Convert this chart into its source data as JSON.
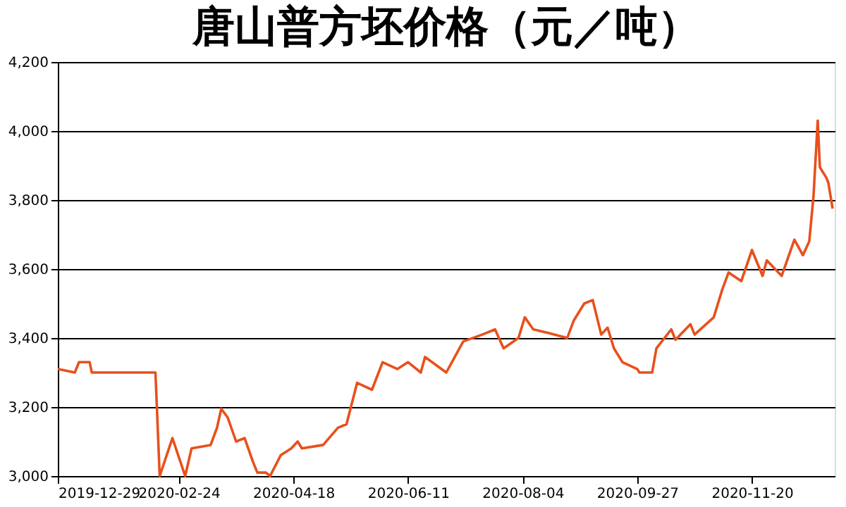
{
  "chart_data": {
    "type": "line",
    "title": "唐山普方坯价格（元／吨）",
    "x": [
      "2019-12-29",
      "2020-01-06",
      "2020-01-08",
      "2020-01-13",
      "2020-01-14",
      "2020-02-13",
      "2020-02-15",
      "2020-02-21",
      "2020-02-27",
      "2020-03-01",
      "2020-03-10",
      "2020-03-13",
      "2020-03-15",
      "2020-03-18",
      "2020-03-22",
      "2020-03-26",
      "2020-03-30",
      "2020-04-01",
      "2020-04-05",
      "2020-04-07",
      "2020-04-12",
      "2020-04-17",
      "2020-04-20",
      "2020-04-22",
      "2020-05-02",
      "2020-05-09",
      "2020-05-13",
      "2020-05-18",
      "2020-05-25",
      "2020-05-30",
      "2020-06-06",
      "2020-06-11",
      "2020-06-17",
      "2020-06-19",
      "2020-06-29",
      "2020-07-07",
      "2020-07-16",
      "2020-07-22",
      "2020-07-26",
      "2020-08-02",
      "2020-08-05",
      "2020-08-09",
      "2020-08-16",
      "2020-08-25",
      "2020-08-28",
      "2020-09-02",
      "2020-09-06",
      "2020-09-10",
      "2020-09-13",
      "2020-09-16",
      "2020-09-20",
      "2020-09-27",
      "2020-09-28",
      "2020-10-04",
      "2020-10-06",
      "2020-10-13",
      "2020-10-15",
      "2020-10-22",
      "2020-10-24",
      "2020-11-02",
      "2020-11-06",
      "2020-11-09",
      "2020-11-15",
      "2020-11-20",
      "2020-11-25",
      "2020-11-27",
      "2020-12-04",
      "2020-12-10",
      "2020-12-14",
      "2020-12-17",
      "2020-12-19",
      "2020-12-21",
      "2020-12-22",
      "2020-12-25",
      "2020-12-26",
      "2020-12-28"
    ],
    "series": [
      {
        "color": "#e8501c",
        "values": [
          3310,
          3300,
          3330,
          3330,
          3300,
          3300,
          3000,
          3110,
          3000,
          3080,
          3090,
          3140,
          3195,
          3170,
          3100,
          3110,
          3040,
          3010,
          3010,
          3000,
          3060,
          3080,
          3100,
          3080,
          3090,
          3140,
          3150,
          3270,
          3250,
          3330,
          3310,
          3330,
          3300,
          3345,
          3300,
          3390,
          3410,
          3425,
          3370,
          3400,
          3460,
          3425,
          3415,
          3400,
          3450,
          3500,
          3510,
          3410,
          3430,
          3370,
          3330,
          3310,
          3300,
          3300,
          3370,
          3425,
          3395,
          3440,
          3410,
          3460,
          3540,
          3590,
          3565,
          3655,
          3580,
          3625,
          3580,
          3685,
          3640,
          3680,
          3810,
          4030,
          3895,
          3865,
          3850,
          3775
        ]
      }
    ],
    "xlim": [
      "2019-12-29",
      "2020-12-29"
    ],
    "xticks": [
      "2019-12-29",
      "2020-02-24",
      "2020-04-18",
      "2020-06-11",
      "2020-08-04",
      "2020-09-27",
      "2020-11-20"
    ],
    "ylim": [
      3000,
      4200
    ],
    "yticks": [
      {
        "value": 3000,
        "label": "3,000"
      },
      {
        "value": 3200,
        "label": "3,200"
      },
      {
        "value": 3400,
        "label": "3,400"
      },
      {
        "value": 3600,
        "label": "3,600"
      },
      {
        "value": 3800,
        "label": "3,800"
      },
      {
        "value": 4000,
        "label": "4,000"
      },
      {
        "value": 4200,
        "label": "4,200"
      }
    ],
    "grid": "y",
    "legend": false,
    "marker": "none",
    "line_style": "solid"
  }
}
